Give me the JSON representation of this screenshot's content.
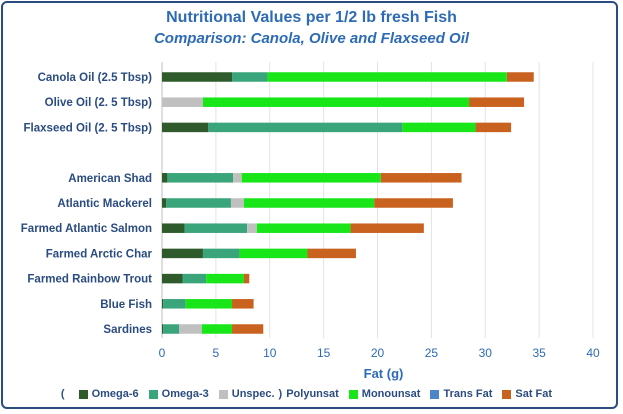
{
  "title": "Nutritional Values per 1/2 lb fresh Fish",
  "subtitle": "Comparison: Canola, Olive and Flaxseed Oil",
  "chart_data": {
    "type": "bar",
    "orientation": "horizontal",
    "stacked": true,
    "categories": [
      "Canola Oil (2.5 Tbsp)",
      "Olive Oil (2. 5 Tbsp)",
      "Flaxseed Oil (2. 5 Tbsp)",
      "",
      "American Shad",
      "Atlantic Mackerel",
      "Farmed Atlantic Salmon",
      "Farmed Arctic Char",
      "Farmed Rainbow Trout",
      "Blue Fish",
      "Sardines"
    ],
    "series": [
      {
        "name": "Omega-6",
        "color": "#2f5a2b",
        "values": [
          6.5,
          0,
          4.3,
          0,
          0.5,
          0.4,
          2.1,
          3.8,
          1.9,
          0.1,
          0.1
        ]
      },
      {
        "name": "Omega-3",
        "color": "#3aa57a",
        "values": [
          3.3,
          0,
          18.0,
          0,
          6.1,
          6.0,
          5.8,
          3.4,
          2.2,
          2.1,
          1.5
        ]
      },
      {
        "name": "Unspec.",
        "color": "#c0c0c0",
        "values": [
          0,
          3.8,
          0,
          0,
          0.8,
          1.2,
          0.9,
          0,
          0,
          0,
          2.1
        ]
      },
      {
        "name": "Monounsat",
        "color": "#19e619",
        "values": [
          22.2,
          24.7,
          6.8,
          0,
          12.9,
          12.1,
          8.7,
          6.3,
          3.5,
          4.3,
          2.8
        ]
      },
      {
        "name": "Trans Fat",
        "color": "#4a86c8",
        "values": [
          0,
          0,
          0,
          0,
          0,
          0,
          0,
          0,
          0,
          0,
          0
        ]
      },
      {
        "name": "Sat Fat",
        "color": "#c9611f",
        "values": [
          2.5,
          5.1,
          3.3,
          0,
          7.5,
          7.3,
          6.8,
          4.5,
          0.5,
          2.0,
          2.9
        ]
      }
    ],
    "xlabel": "Fat (g)",
    "xlim": [
      0,
      40
    ],
    "xticks": [
      0,
      5,
      10,
      15,
      20,
      25,
      30,
      35,
      40
    ],
    "grid": "vertical",
    "legend": {
      "position": "bottom",
      "open_paren": "(",
      "polyunsat_close": ")",
      "polyunsat_label": "Polyunsat"
    }
  }
}
